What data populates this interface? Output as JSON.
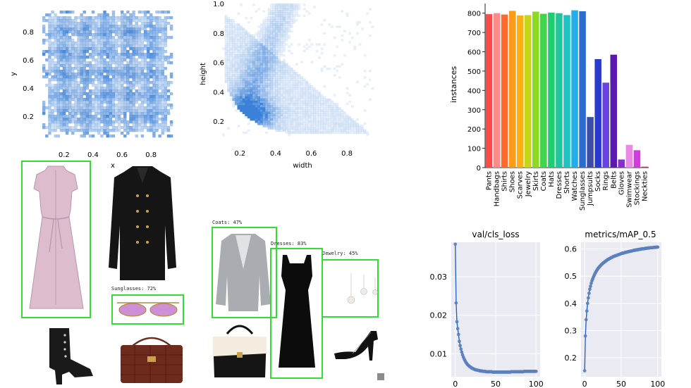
{
  "chart_data": [
    {
      "type": "heatmap",
      "id": "xy-hist",
      "xlabel": "x",
      "ylabel": "y",
      "xticks": [
        0.2,
        0.4,
        0.6,
        0.8
      ],
      "yticks": [
        0.2,
        0.4,
        0.6,
        0.8
      ],
      "xlim": [
        0.05,
        0.95
      ],
      "ylim": [
        0.05,
        0.95
      ],
      "color": "#3a80d8"
    },
    {
      "type": "heatmap",
      "id": "wh-hist",
      "xlabel": "width",
      "ylabel": "height",
      "xticks": [
        0.2,
        0.4,
        0.6,
        0.8
      ],
      "yticks": [
        0.2,
        0.4,
        0.6,
        0.8,
        1.0
      ],
      "ytick_labels": [
        "0.2",
        "0.4",
        "0.6",
        "0.8",
        "1.0"
      ],
      "xlim": [
        0.1,
        0.95
      ],
      "ylim": [
        0.1,
        1.0
      ],
      "color": "#3a80d8"
    },
    {
      "type": "bar",
      "id": "instances",
      "ylabel": "instances",
      "ylim": [
        0,
        850
      ],
      "yticks": [
        0,
        100,
        200,
        300,
        400,
        500,
        600,
        700,
        800
      ],
      "categories": [
        "Pants",
        "Handbags",
        "Shirts",
        "Shoes",
        "Scarves",
        "Jewelry",
        "Skirts",
        "Coats",
        "Hats",
        "Dresses",
        "Shorts",
        "Watches",
        "Sunglasses",
        "Jumpsuits",
        "Socks",
        "Rings",
        "Belts",
        "Gloves",
        "Swimwear",
        "Stockings",
        "Neckties"
      ],
      "values": [
        795,
        800,
        793,
        812,
        788,
        790,
        808,
        797,
        803,
        800,
        790,
        815,
        810,
        262,
        562,
        440,
        585,
        42,
        118,
        90,
        5
      ],
      "colors": [
        "#ff4a4a",
        "#ff8a8a",
        "#ff6a2a",
        "#ff9a1a",
        "#ffb010",
        "#c6d41a",
        "#8adc1e",
        "#3fd44a",
        "#20cc70",
        "#22c49e",
        "#1ec2c2",
        "#22aee6",
        "#2a6cd0",
        "#3c4ca8",
        "#2a3acc",
        "#6a44e0",
        "#5a1ab0",
        "#8a2cd6",
        "#e88ae6",
        "#d63adc",
        "#ff1c8a"
      ]
    },
    {
      "type": "line",
      "id": "val-cls-loss",
      "title": "val/cls_loss",
      "xlim": [
        -5,
        105
      ],
      "ylim": [
        0.004,
        0.039
      ],
      "xticks": [
        0,
        50,
        100
      ],
      "yticks": [
        0.01,
        0.02,
        0.03
      ],
      "line_color": "#1f66c4",
      "marker_color": "#5a7fbf",
      "x": [
        0,
        1,
        2,
        3,
        4,
        5,
        6,
        7,
        8,
        9,
        10,
        11,
        12,
        13,
        14,
        15,
        16,
        17,
        18,
        19,
        20,
        21,
        22,
        23,
        24,
        25,
        26,
        27,
        28,
        29,
        30,
        31,
        32,
        33,
        34,
        35,
        36,
        37,
        38,
        39,
        40,
        41,
        42,
        43,
        44,
        45,
        46,
        47,
        48,
        49,
        50,
        51,
        52,
        53,
        54,
        55,
        56,
        57,
        58,
        59,
        60,
        61,
        62,
        63,
        64,
        65,
        66,
        67,
        68,
        69,
        70,
        71,
        72,
        73,
        74,
        75,
        76,
        77,
        78,
        79,
        80,
        81,
        82,
        83,
        84,
        85,
        86,
        87,
        88,
        89,
        90,
        91,
        92,
        93,
        94,
        95,
        96,
        97,
        98,
        99,
        100
      ],
      "y": [
        0.0385,
        0.0232,
        0.0183,
        0.0165,
        0.015,
        0.0132,
        0.0121,
        0.0112,
        0.0104,
        0.0097,
        0.0091,
        0.0086,
        0.0082,
        0.0078,
        0.0075,
        0.0072,
        0.007,
        0.0068,
        0.0066,
        0.0065,
        0.0063,
        0.0062,
        0.0061,
        0.006,
        0.0059,
        0.0058,
        0.0058,
        0.0057,
        0.0057,
        0.0056,
        0.0056,
        0.0055,
        0.0055,
        0.0055,
        0.0054,
        0.0054,
        0.0054,
        0.0054,
        0.0053,
        0.0053,
        0.0053,
        0.0053,
        0.0053,
        0.0053,
        0.0053,
        0.0053,
        0.0052,
        0.0052,
        0.0052,
        0.0052,
        0.0052,
        0.0052,
        0.0052,
        0.0052,
        0.0052,
        0.0052,
        0.0052,
        0.0052,
        0.0052,
        0.0052,
        0.0052,
        0.0052,
        0.0052,
        0.0052,
        0.0052,
        0.0052,
        0.0052,
        0.0052,
        0.0052,
        0.0053,
        0.0053,
        0.0053,
        0.0053,
        0.0053,
        0.0053,
        0.0053,
        0.0053,
        0.0053,
        0.0053,
        0.0053,
        0.0053,
        0.0053,
        0.0053,
        0.0053,
        0.0053,
        0.0054,
        0.0054,
        0.0054,
        0.0054,
        0.0054,
        0.0054,
        0.0054,
        0.0054,
        0.0054,
        0.0054,
        0.0054,
        0.0054,
        0.0054,
        0.0054,
        0.0054,
        0.0054
      ]
    },
    {
      "type": "line",
      "id": "map-05",
      "title": "metrics/mAP_0.5",
      "xlim": [
        -5,
        105
      ],
      "ylim": [
        0.13,
        0.625
      ],
      "xticks": [
        0,
        50,
        100
      ],
      "yticks": [
        0.2,
        0.3,
        0.4,
        0.5,
        0.6
      ],
      "line_color": "#1f66c4",
      "marker_color": "#5a7fbf",
      "x": [
        0,
        1,
        2,
        3,
        4,
        5,
        6,
        7,
        8,
        9,
        10,
        11,
        12,
        13,
        14,
        15,
        16,
        17,
        18,
        19,
        20,
        21,
        22,
        23,
        24,
        25,
        26,
        27,
        28,
        29,
        30,
        31,
        32,
        33,
        34,
        35,
        36,
        37,
        38,
        39,
        40,
        41,
        42,
        43,
        44,
        45,
        46,
        47,
        48,
        49,
        50,
        51,
        52,
        53,
        54,
        55,
        56,
        57,
        58,
        59,
        60,
        61,
        62,
        63,
        64,
        65,
        66,
        67,
        68,
        69,
        70,
        71,
        72,
        73,
        74,
        75,
        76,
        77,
        78,
        79,
        80,
        81,
        82,
        83,
        84,
        85,
        86,
        87,
        88,
        89,
        90,
        91,
        92,
        93,
        94,
        95,
        96,
        97,
        98,
        99,
        100
      ],
      "y": [
        0.152,
        0.28,
        0.34,
        0.372,
        0.4,
        0.42,
        0.437,
        0.452,
        0.463,
        0.474,
        0.483,
        0.49,
        0.497,
        0.503,
        0.509,
        0.514,
        0.519,
        0.523,
        0.527,
        0.531,
        0.534,
        0.537,
        0.54,
        0.543,
        0.545,
        0.548,
        0.55,
        0.552,
        0.554,
        0.556,
        0.558,
        0.56,
        0.562,
        0.563,
        0.565,
        0.566,
        0.568,
        0.569,
        0.57,
        0.572,
        0.573,
        0.574,
        0.575,
        0.576,
        0.577,
        0.578,
        0.579,
        0.58,
        0.581,
        0.582,
        0.583,
        0.584,
        0.585,
        0.585,
        0.586,
        0.587,
        0.588,
        0.588,
        0.589,
        0.59,
        0.59,
        0.591,
        0.592,
        0.592,
        0.593,
        0.593,
        0.594,
        0.595,
        0.595,
        0.596,
        0.596,
        0.597,
        0.597,
        0.598,
        0.598,
        0.599,
        0.599,
        0.6,
        0.6,
        0.601,
        0.601,
        0.601,
        0.602,
        0.602,
        0.603,
        0.603,
        0.603,
        0.604,
        0.604,
        0.604,
        0.605,
        0.605,
        0.605,
        0.605,
        0.606,
        0.606,
        0.606,
        0.606,
        0.607,
        0.607,
        0.607
      ]
    }
  ],
  "detections": {
    "sunglasses": "Sunglasses: 72%",
    "coats": "Coats: 47%",
    "dresses": "Dresses: 83%",
    "jewelry": "Jewelry: 45%"
  },
  "images": {
    "dress": "dress-photo",
    "coat": "coat-photo",
    "sunglasses": "sunglasses-photo",
    "boot": "boot-photo",
    "handbag": "handbag-photo",
    "blazer": "blazer-photo",
    "black_dress": "black-dress-photo",
    "earrings": "earrings-photo",
    "shoulder_bag": "shoulder-bag-photo",
    "heels": "heels-photo"
  }
}
